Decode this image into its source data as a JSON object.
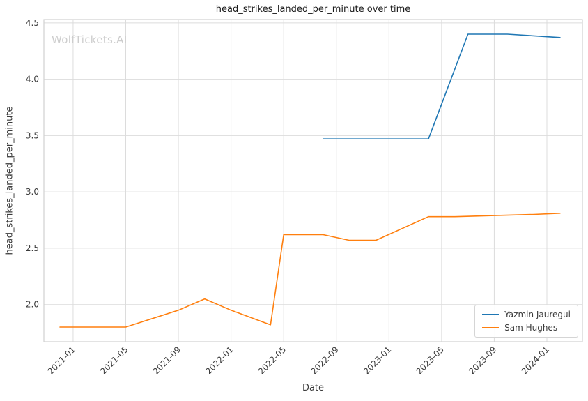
{
  "watermark": {
    "text": "WolfTickets.AI"
  },
  "chart_data": {
    "type": "line",
    "title": "head_strikes_landed_per_minute over time",
    "xlabel": "Date",
    "ylabel": "head_strikes_landed_per_minute",
    "grid": true,
    "legend_position": "lower right",
    "x_tick_labels": [
      "2021-01",
      "2021-05",
      "2021-09",
      "2022-01",
      "2022-05",
      "2022-09",
      "2023-01",
      "2023-05",
      "2023-09",
      "2024-01"
    ],
    "y_ticks": [
      2.0,
      2.5,
      3.0,
      3.5,
      4.0,
      4.5
    ],
    "xlim_decimal_years": [
      2020.815,
      2024.225
    ],
    "ylim": [
      1.67,
      4.53
    ],
    "series": [
      {
        "name": "Yazmin Jauregui",
        "color": "#1f77b4",
        "points": [
          [
            "2022-08",
            3.47
          ],
          [
            "2022-12",
            3.47
          ],
          [
            "2023-04",
            3.47
          ],
          [
            "2023-07",
            4.4
          ],
          [
            "2023-10",
            4.4
          ],
          [
            "2024-02",
            4.37
          ]
        ]
      },
      {
        "name": "Sam Hughes",
        "color": "#ff7f0e",
        "points": [
          [
            "2020-12",
            1.8
          ],
          [
            "2021-02",
            1.8
          ],
          [
            "2021-05",
            1.8
          ],
          [
            "2021-09",
            1.95
          ],
          [
            "2021-11",
            2.05
          ],
          [
            "2022-01",
            1.95
          ],
          [
            "2022-04",
            1.82
          ],
          [
            "2022-05",
            2.62
          ],
          [
            "2022-08",
            2.62
          ],
          [
            "2022-10",
            2.57
          ],
          [
            "2022-12",
            2.57
          ],
          [
            "2023-04",
            2.78
          ],
          [
            "2023-06",
            2.78
          ],
          [
            "2023-09",
            2.79
          ],
          [
            "2023-12",
            2.8
          ],
          [
            "2024-02",
            2.81
          ]
        ]
      }
    ]
  }
}
